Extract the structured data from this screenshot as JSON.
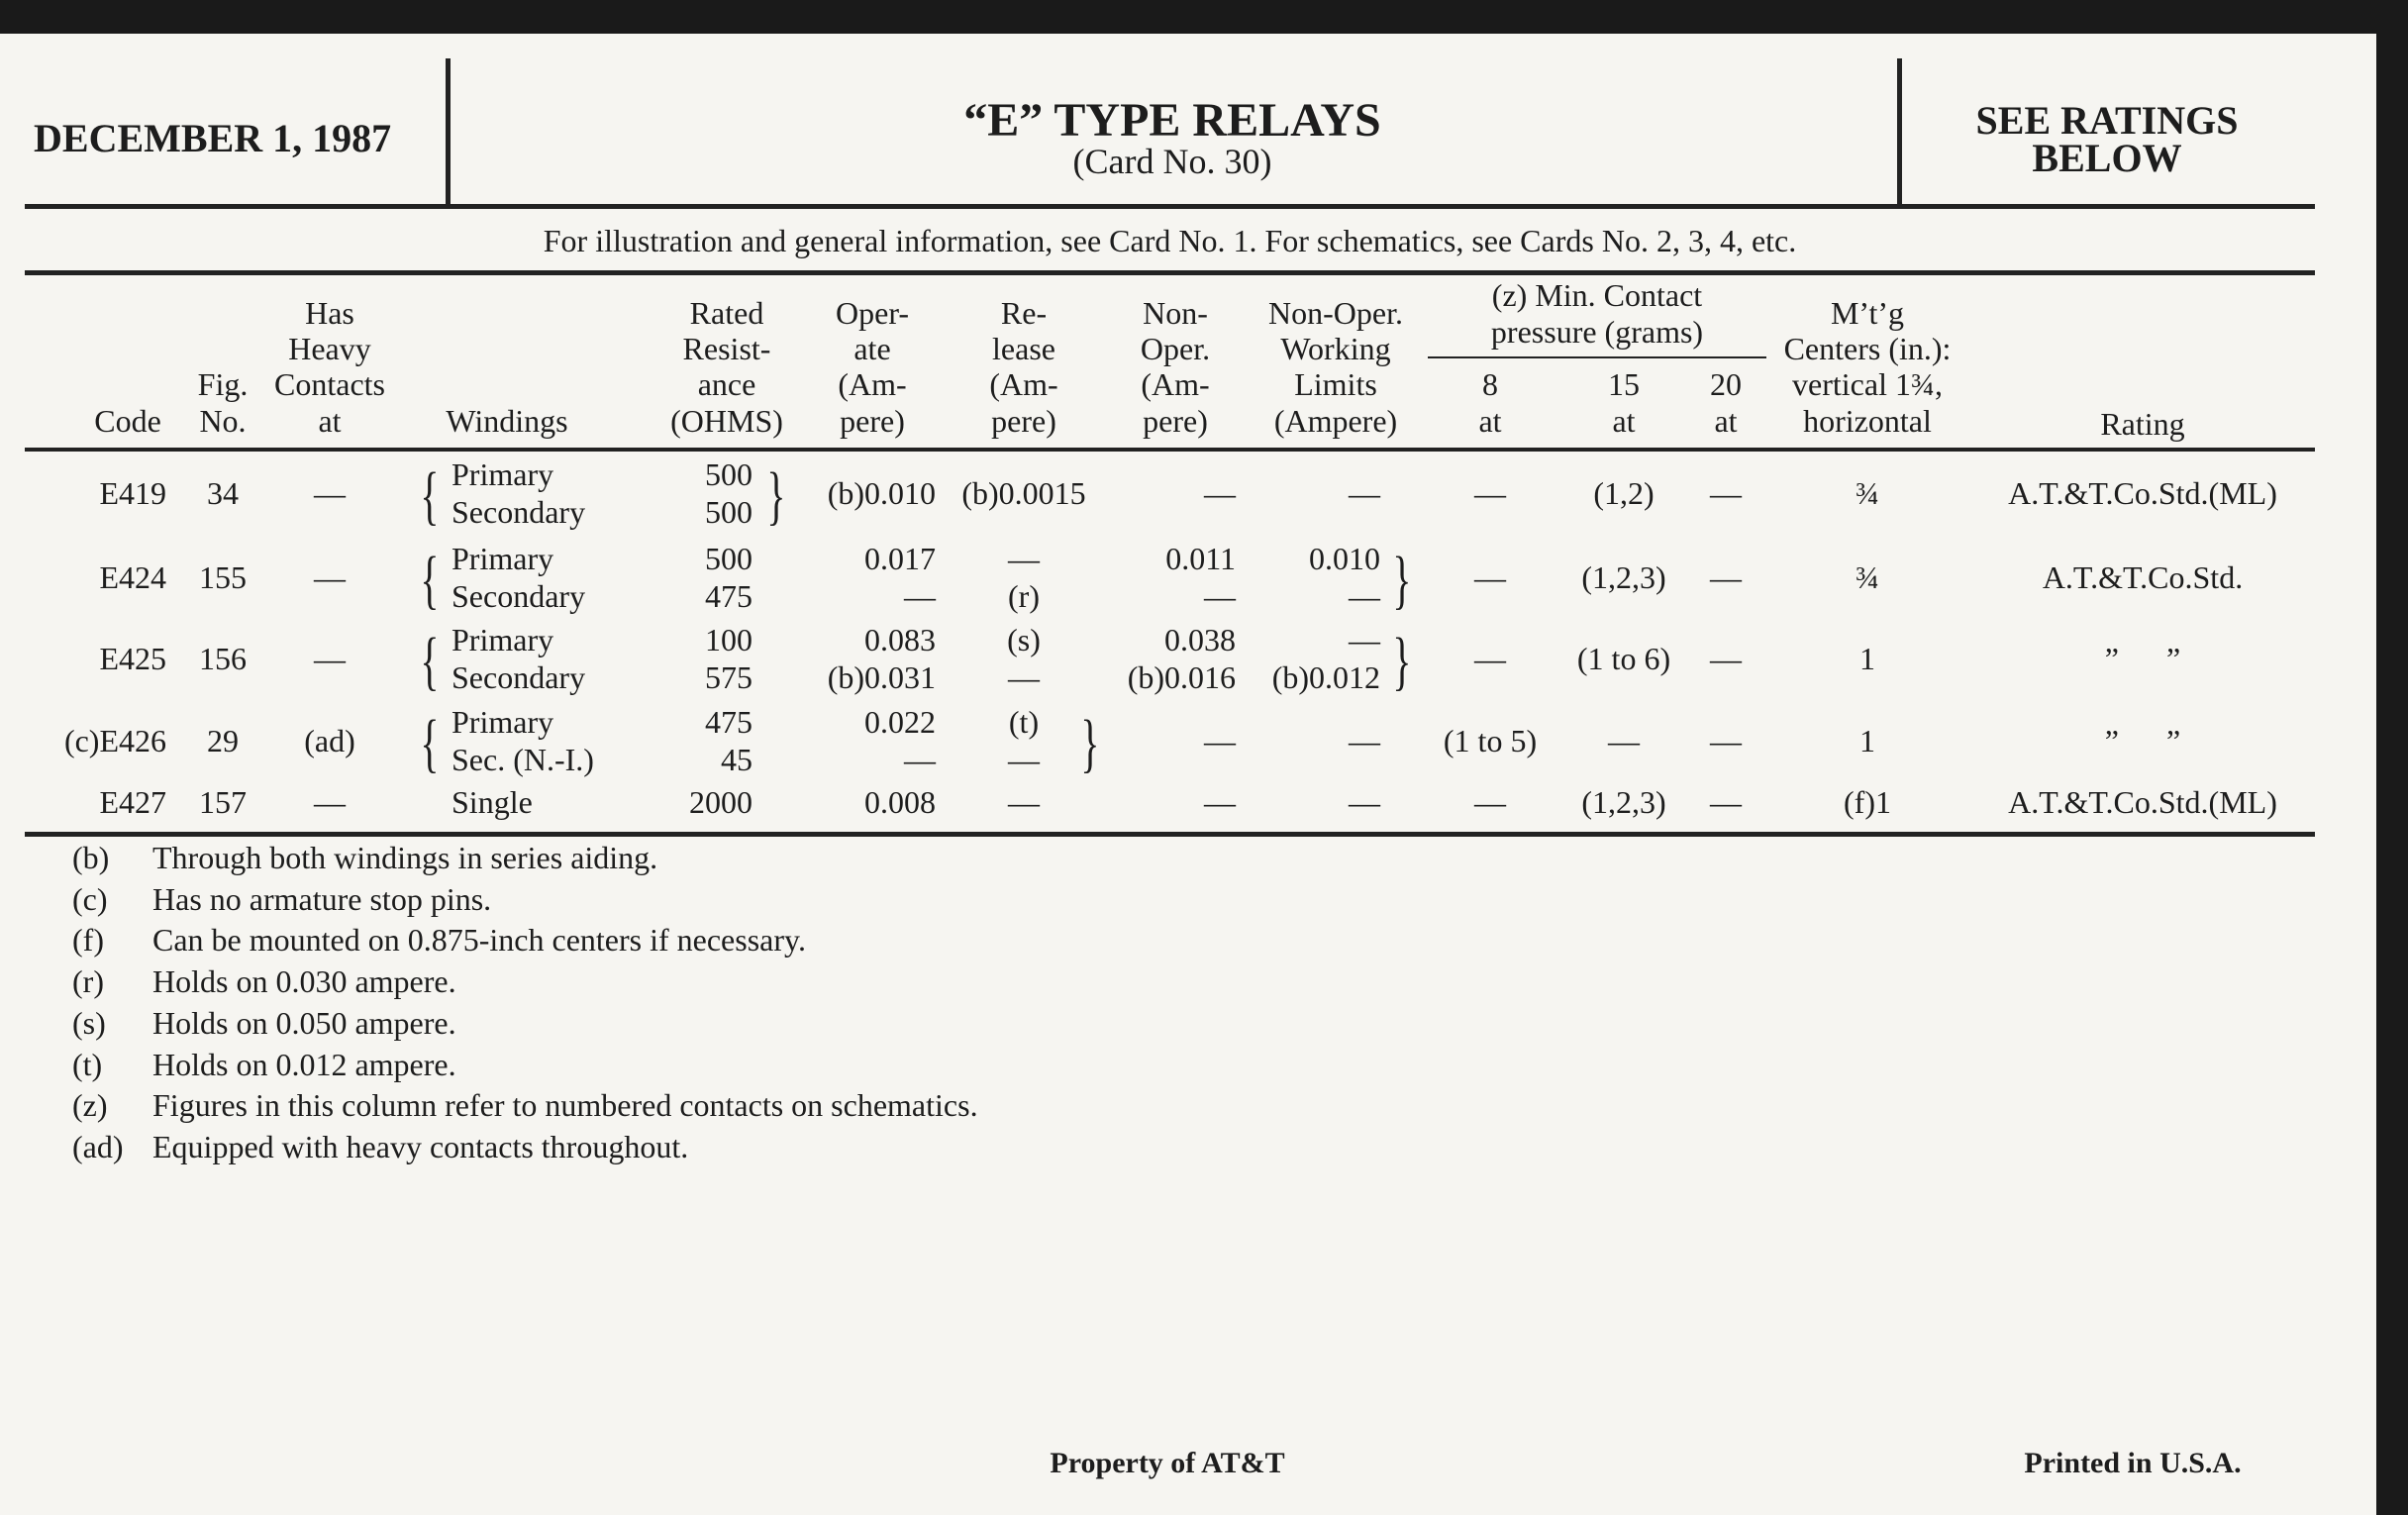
{
  "header": {
    "date": "DECEMBER 1, 1987",
    "title": "“E” TYPE RELAYS",
    "card": "(Card No. 30)",
    "ratings_line1": "SEE RATINGS",
    "ratings_line2": "BELOW"
  },
  "info_line": "For illustration and general information, see Card No. 1. For schematics, see Cards No. 2, 3, 4, etc.",
  "table": {
    "columns": {
      "code": [
        "Code"
      ],
      "fig": [
        "Fig.",
        "No."
      ],
      "heavy": [
        "Has",
        "Heavy",
        "Contacts",
        "at"
      ],
      "windings": [
        "Windings"
      ],
      "resistance": [
        "Rated",
        "Resist-",
        "ance",
        "(OHMS)"
      ],
      "operate": [
        "Oper-",
        "ate",
        "(Am-",
        "pere)"
      ],
      "release": [
        "Re-",
        "lease",
        "(Am-",
        "pere)"
      ],
      "nonoper": [
        "Non-",
        "Oper.",
        "(Am-",
        "pere)"
      ],
      "working": [
        "Non-Oper.",
        "Working",
        "Limits",
        "(Ampere)"
      ],
      "contact_group": [
        "(z) Min. Contact",
        "pressure (grams)"
      ],
      "c8": [
        "8",
        "at"
      ],
      "c15": [
        "15",
        "at"
      ],
      "c20": [
        "20",
        "at"
      ],
      "mtg": [
        "M’t’g",
        "Centers (in.):",
        "vertical 1¾,",
        "horizontal"
      ],
      "rating": [
        "Rating"
      ]
    },
    "rows": [
      {
        "code": "E419",
        "fig": "34",
        "heavy": "—",
        "windings": [
          "Primary",
          "Secondary"
        ],
        "resistance": [
          "500",
          "500"
        ],
        "operate": "(b)0.010",
        "release": "(b)0.0015",
        "nonoper": "—",
        "working": "—",
        "c8": "—",
        "c15": "(1,2)",
        "c20": "—",
        "mtg": "¾",
        "rating": "A.T.&T.Co.Std.(ML)",
        "bracket_group": "resistance"
      },
      {
        "code": "E424",
        "fig": "155",
        "heavy": "—",
        "windings": [
          "Primary",
          "Secondary"
        ],
        "resistance": [
          "500",
          "475"
        ],
        "operate": [
          "0.017",
          "—"
        ],
        "release": [
          "—",
          "(r)"
        ],
        "nonoper": [
          "0.011",
          "—"
        ],
        "working": [
          "0.010",
          "—"
        ],
        "c8": "—",
        "c15": "(1,2,3)",
        "c20": "—",
        "mtg": "¾",
        "rating": "A.T.&T.Co.Std.",
        "bracket_group": "working"
      },
      {
        "code": "E425",
        "fig": "156",
        "heavy": "—",
        "windings": [
          "Primary",
          "Secondary"
        ],
        "resistance": [
          "100",
          "575"
        ],
        "operate": [
          "0.083",
          "(b)0.031"
        ],
        "release": [
          "(s)",
          "—"
        ],
        "nonoper": [
          "0.038",
          "(b)0.016"
        ],
        "working": [
          "—",
          "(b)0.012"
        ],
        "c8": "—",
        "c15": "(1 to 6)",
        "c20": "—",
        "mtg": "1",
        "rating": "”      ”",
        "bracket_group": "working"
      },
      {
        "code": "(c)E426",
        "fig": "29",
        "heavy": "(ad)",
        "windings": [
          "Primary",
          "Sec. (N.-I.)"
        ],
        "resistance": [
          "475",
          "45"
        ],
        "operate": [
          "0.022",
          "—"
        ],
        "release": [
          "(t)",
          "—"
        ],
        "nonoper": "—",
        "working": "—",
        "c8": "(1 to 5)",
        "c15": "—",
        "c20": "—",
        "mtg": "1",
        "rating": "”      ”",
        "bracket_group": "release"
      },
      {
        "code": "E427",
        "fig": "157",
        "heavy": "—",
        "windings": "Single",
        "resistance": "2000",
        "operate": "0.008",
        "release": "—",
        "nonoper": "—",
        "working": "—",
        "c8": "—",
        "c15": "(1,2,3)",
        "c20": "—",
        "mtg": "(f)1",
        "rating": "A.T.&T.Co.Std.(ML)",
        "bracket_group": ""
      }
    ]
  },
  "footnotes": [
    {
      "key": "(b)",
      "text": "Through both windings in series aiding."
    },
    {
      "key": "(c)",
      "text": "Has no armature stop pins."
    },
    {
      "key": "(f)",
      "text": "Can be mounted on 0.875-inch centers if necessary."
    },
    {
      "key": "(r)",
      "text": "Holds on 0.030 ampere."
    },
    {
      "key": "(s)",
      "text": "Holds on 0.050 ampere."
    },
    {
      "key": "(t)",
      "text": "Holds on 0.012 ampere."
    },
    {
      "key": "(z)",
      "text": "Figures in this column refer to numbered contacts on schematics."
    },
    {
      "key": "(ad)",
      "text": "Equipped with heavy contacts throughout."
    }
  ],
  "footer": {
    "property": "Property of AT&T",
    "printed": "Printed in U.S.A."
  }
}
